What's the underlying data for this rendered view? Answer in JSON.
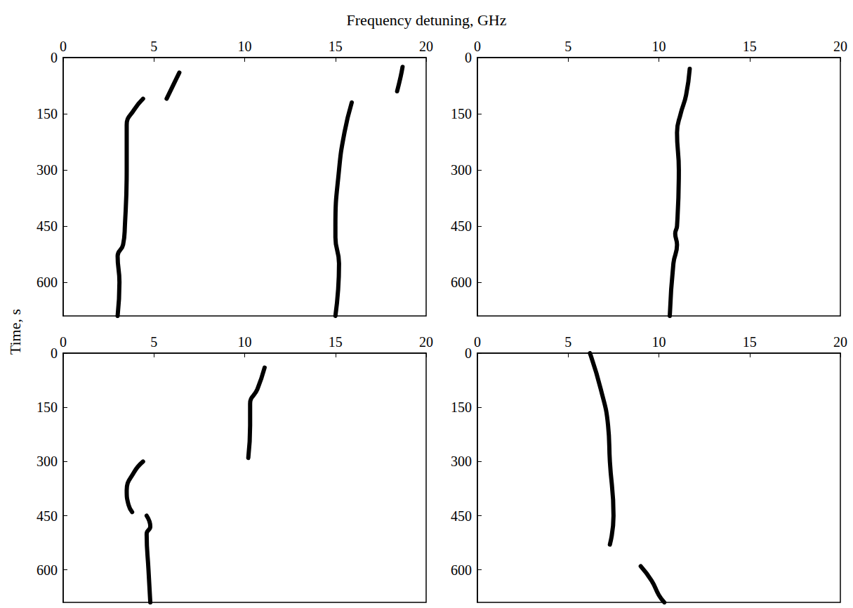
{
  "chart_data": {
    "type": "line",
    "x_label": "Frequency detuning, GHz",
    "y_label": "Time, s",
    "color": "#000000",
    "panels": [
      {
        "xlim": [
          0,
          20
        ],
        "xticks": [
          0,
          5,
          10,
          15,
          20
        ],
        "ylim": [
          0,
          690
        ],
        "yticks": [
          0,
          150,
          300,
          450,
          600
        ],
        "traces": [
          {
            "x": [
              6.4,
              6.0,
              5.7
            ],
            "y": [
              40,
              80,
              110
            ]
          },
          {
            "x": [
              4.4,
              3.9,
              3.5,
              3.5,
              3.4,
              3.3,
              3.0,
              3.1,
              3.0
            ],
            "y": [
              110,
              140,
              180,
              300,
              450,
              500,
              530,
              600,
              690
            ]
          },
          {
            "x": [
              15.9,
              15.5,
              15.2,
              15.0,
              15.0,
              15.2,
              15.0
            ],
            "y": [
              120,
              200,
              300,
              450,
              480,
              550,
              690
            ]
          },
          {
            "x": [
              18.7,
              18.6,
              18.4
            ],
            "y": [
              25,
              50,
              90
            ]
          }
        ]
      },
      {
        "xlim": [
          0,
          20
        ],
        "xticks": [
          0,
          5,
          10,
          15,
          20
        ],
        "ylim": [
          0,
          690
        ],
        "yticks": [
          0,
          150,
          300,
          450,
          600
        ],
        "traces": [
          {
            "x": [
              11.7,
              11.5,
              11.2,
              11.0,
              11.1,
              11.0,
              10.9,
              11.0,
              10.8,
              10.6
            ],
            "y": [
              30,
              100,
              150,
              200,
              300,
              450,
              470,
              500,
              550,
              690
            ]
          }
        ]
      },
      {
        "xlim": [
          0,
          20
        ],
        "xticks": [
          0,
          5,
          10,
          15,
          20
        ],
        "ylim": [
          0,
          690
        ],
        "yticks": [
          0,
          150,
          300,
          450,
          600
        ],
        "traces": [
          {
            "x": [
              11.1,
              10.7,
              10.3,
              10.3,
              10.2
            ],
            "y": [
              40,
              100,
              140,
              200,
              290
            ]
          },
          {
            "x": [
              4.4,
              3.9,
              3.5,
              3.6,
              3.8
            ],
            "y": [
              300,
              330,
              380,
              420,
              440
            ]
          },
          {
            "x": [
              4.6,
              4.8,
              4.6,
              4.7,
              4.8
            ],
            "y": [
              450,
              480,
              500,
              600,
              690
            ]
          }
        ]
      },
      {
        "xlim": [
          0,
          20
        ],
        "xticks": [
          0,
          5,
          10,
          15,
          20
        ],
        "ylim": [
          0,
          690
        ],
        "yticks": [
          0,
          150,
          300,
          450,
          600
        ],
        "traces": [
          {
            "x": [
              6.2,
              6.8,
              7.2,
              7.3,
              7.5,
              7.3
            ],
            "y": [
              0,
              100,
              200,
              300,
              450,
              530
            ]
          },
          {
            "x": [
              9.0,
              9.6,
              10.0,
              10.3
            ],
            "y": [
              590,
              630,
              670,
              690
            ]
          }
        ]
      }
    ]
  }
}
